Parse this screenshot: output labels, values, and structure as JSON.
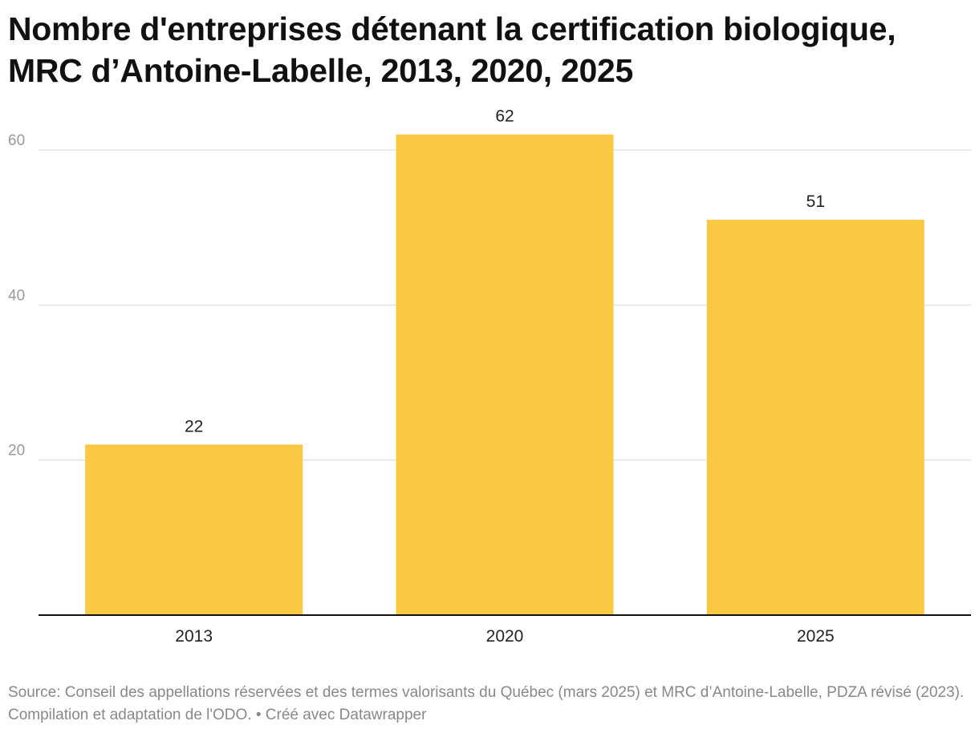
{
  "title": "Nombre d'entreprises détenant la certification biologique, MRC d’Antoine-Labelle, 2013, 2020, 2025",
  "chart_data": {
    "type": "bar",
    "title": "Nombre d'entreprises détenant la certification biologique, MRC d’Antoine-Labelle, 2013, 2020, 2025",
    "categories": [
      "2013",
      "2020",
      "2025"
    ],
    "values": [
      22,
      62,
      51
    ],
    "data_labels": [
      "22",
      "62",
      "51"
    ],
    "xlabel": "",
    "ylabel": "",
    "ylim": [
      0,
      62
    ],
    "yticks": [
      20,
      40,
      60
    ],
    "ytick_labels": [
      "20",
      "40",
      "60"
    ],
    "grid": true,
    "bar_color": "#fac943"
  },
  "source": "Source: Conseil des appellations réservées et des termes valorisants du Québec (mars 2025) et MRC d’Antoine-Labelle, PDZA révisé (2023). Compilation et adaptation de l'ODO. • Créé avec Datawrapper"
}
